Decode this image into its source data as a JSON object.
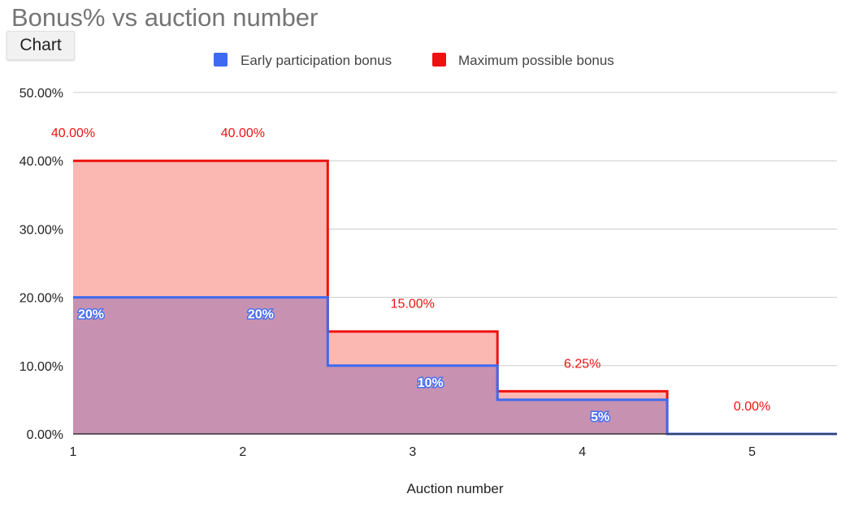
{
  "app": {
    "title": "Bonus% vs auction number",
    "chip_label": "Chart"
  },
  "chart_data": {
    "type": "area",
    "title": "Bonus% vs auction number",
    "xlabel": "Auction number",
    "ylabel": "",
    "categories": [
      "1",
      "2",
      "3",
      "4",
      "5"
    ],
    "y_ticks": [
      "0.00%",
      "10.00%",
      "20.00%",
      "30.00%",
      "40.00%",
      "50.00%"
    ],
    "ylim": [
      0,
      50
    ],
    "step": true,
    "grid": true,
    "legend_position": "top",
    "series": [
      {
        "name": "Early participation bonus",
        "color": "#3d6af0",
        "fill": "#c791b1",
        "values": [
          20,
          20,
          10,
          5,
          0
        ],
        "labels": [
          "20%",
          "20%",
          "10%",
          "5%",
          ""
        ]
      },
      {
        "name": "Maximum possible bonus",
        "color": "#ee1111",
        "fill": "#fbb7b2",
        "values": [
          40,
          40,
          15,
          6.25,
          0
        ],
        "labels": [
          "40.00%",
          "40.00%",
          "15.00%",
          "6.25%",
          "0.00%"
        ]
      }
    ]
  }
}
